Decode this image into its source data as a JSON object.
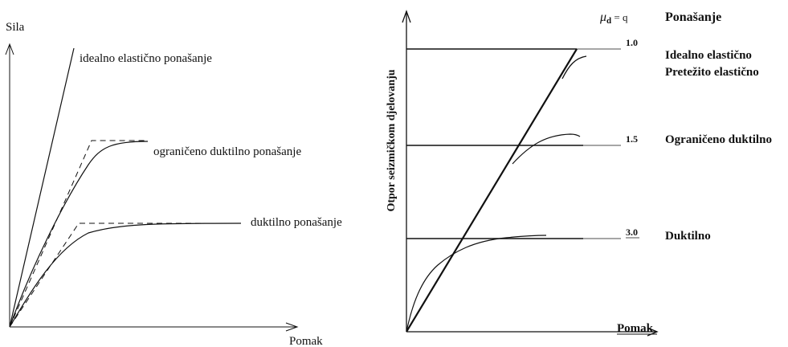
{
  "left_diagram": {
    "y_axis_label": "Sila",
    "x_axis_label": "Pomak",
    "curves": {
      "elastic": "idealno elastično ponašanje",
      "limited_ductile": "ograničeno duktilno ponašanje",
      "ductile": "duktilno ponašanje"
    }
  },
  "right_diagram": {
    "y_axis_label": "Otpor seizmičkom djelovanju",
    "x_axis_label": "Pomak",
    "column_header_symbol": "μ",
    "column_header_subscript": "d",
    "column_header_rest": " = q",
    "column_header_behaviour": "Ponašanje",
    "levels": [
      {
        "q": "1.0",
        "behaviour_line1": "Idealno elastično",
        "behaviour_line2": "Pretežito elastično"
      },
      {
        "q": "1.5",
        "behaviour_line1": "Ograničeno duktilno"
      },
      {
        "q": "3.0",
        "behaviour_line1": "Duktilno"
      }
    ]
  }
}
